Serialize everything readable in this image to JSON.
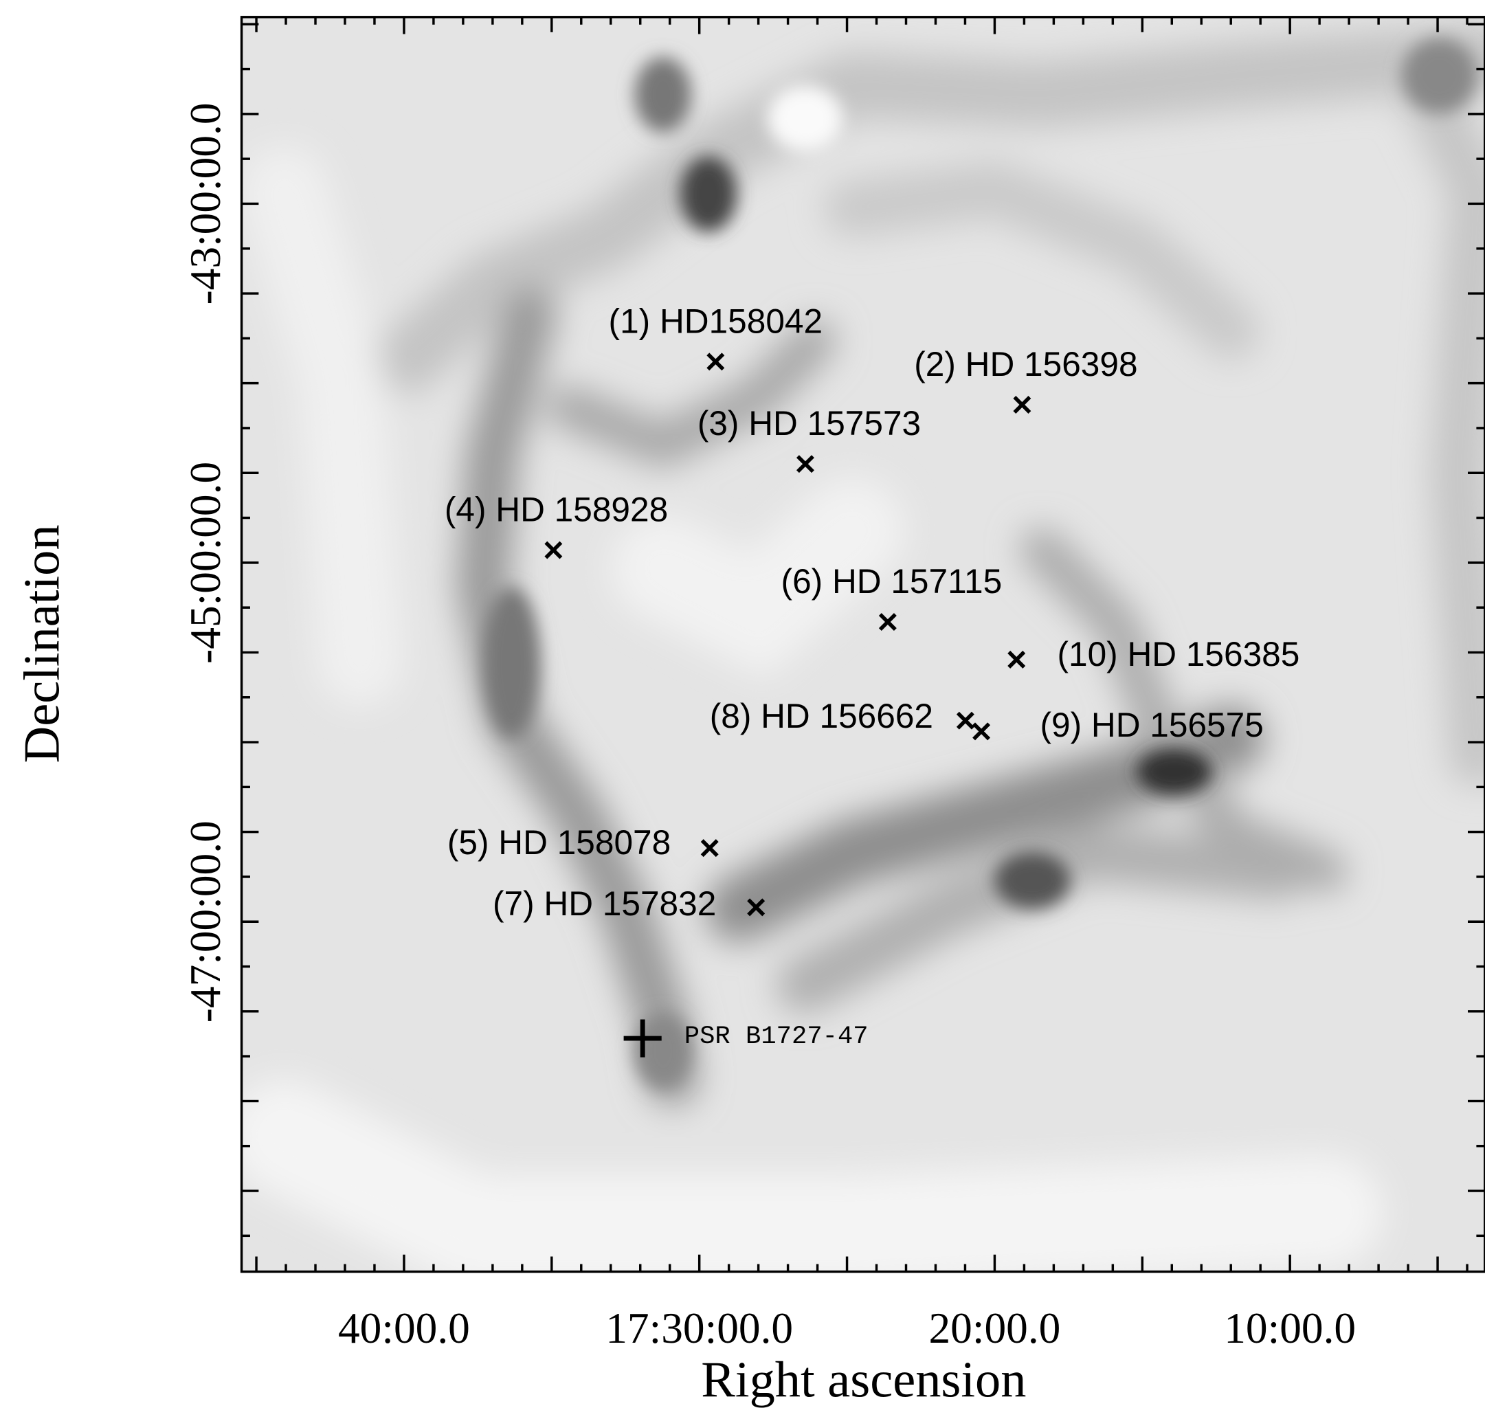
{
  "chart_data": {
    "type": "scatter",
    "x_label": "Right ascension",
    "y_label": "Declination",
    "xlim": [
      45.5,
      3.4
    ],
    "ylim": [
      -48.95,
      -41.96
    ],
    "xticks": [
      {
        "value": 40,
        "label": "40:00.0"
      },
      {
        "value": 30,
        "label": "17:30:00.0"
      },
      {
        "value": 20,
        "label": "20:00.0"
      },
      {
        "value": 10,
        "label": "10:00.0"
      }
    ],
    "yticks": [
      {
        "value": -43,
        "label": "-43:00:00.0"
      },
      {
        "value": -45,
        "label": "-45:00:00.0"
      },
      {
        "value": -47,
        "label": "-47:00:00.0"
      }
    ],
    "xminorticks": [
      4,
      5,
      6,
      7,
      8,
      9,
      11,
      12,
      13,
      14,
      15,
      16,
      17,
      18,
      19,
      21,
      22,
      23,
      24,
      25,
      26,
      27,
      28,
      29,
      31,
      32,
      33,
      34,
      35,
      36,
      37,
      38,
      39,
      41,
      42,
      43,
      44,
      45
    ],
    "yminorticks": [
      -42,
      -42.25,
      -42.5,
      -42.75,
      -43.25,
      -43.5,
      -43.75,
      -44,
      -44.25,
      -44.5,
      -44.75,
      -45.25,
      -45.5,
      -45.75,
      -46,
      -46.25,
      -46.5,
      -46.75,
      -47.25,
      -47.5,
      -47.75,
      -48,
      -48.25,
      -48.5,
      -48.75
    ],
    "points": {
      "labels": [
        "(1) HD158042",
        "(2) HD 156398",
        "(3) HD 157573",
        "(4) HD 158928",
        "(5) HD 158078",
        "(6) HD 157115",
        "(7) HD 157832",
        "(8) HD 156662",
        "(9) HD 156575",
        "(10) HD 156385"
      ],
      "x": [
        29.45,
        19.07,
        26.41,
        34.94,
        29.65,
        23.62,
        28.08,
        20.99,
        20.45,
        19.26
      ],
      "y": [
        -43.88,
        -44.12,
        -44.45,
        -44.93,
        -46.59,
        -45.33,
        -46.92,
        -45.88,
        -45.94,
        -45.54
      ]
    },
    "pulsar": {
      "label": "PSR B1727-47",
      "x": 31.92,
      "y": -47.65
    }
  }
}
